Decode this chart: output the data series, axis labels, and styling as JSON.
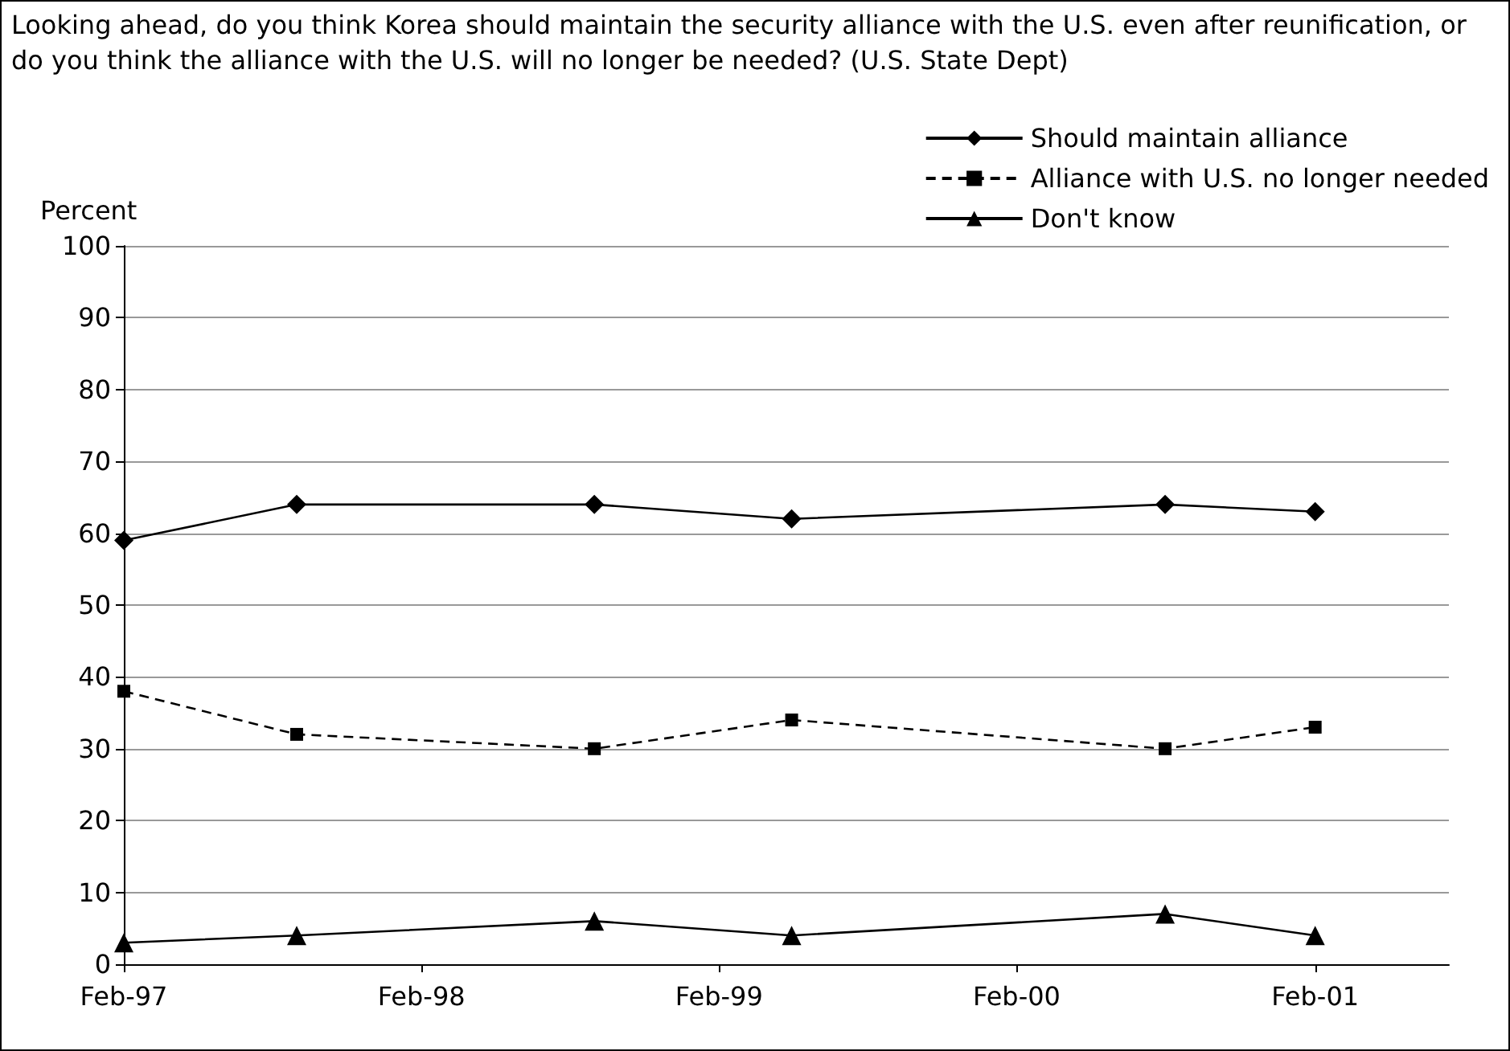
{
  "chart_data": {
    "type": "line",
    "title": "Looking ahead, do you think Korea should maintain the security alliance with the U.S. even after reunification, or do you think the alliance with the U.S. will no longer be needed? (U.S. State Dept)",
    "ylabel": "Percent",
    "x": [
      "1997-02",
      "1997-09",
      "1998-09",
      "1999-05",
      "2000-08",
      "2001-02"
    ],
    "series": [
      {
        "name": "Should maintain alliance",
        "color": "#000000",
        "marker": "diamond",
        "line_style": "solid",
        "values": [
          59,
          64,
          64,
          62,
          64,
          63
        ]
      },
      {
        "name": "Alliance with U.S. no longer needed",
        "color": "#000000",
        "marker": "square",
        "line_style": "dashed",
        "values": [
          38,
          32,
          30,
          34,
          30,
          33
        ]
      },
      {
        "name": "Don't know",
        "color": "#000000",
        "marker": "triangle",
        "line_style": "solid",
        "values": [
          3,
          4,
          6,
          4,
          7,
          4
        ]
      }
    ],
    "xlim": [
      "1997-02",
      "2001-07-15"
    ],
    "xticks": [
      {
        "value": "1997-02",
        "label": "Feb-97"
      },
      {
        "value": "1998-02",
        "label": "Feb-98"
      },
      {
        "value": "1999-02",
        "label": "Feb-99"
      },
      {
        "value": "2000-02",
        "label": "Feb-00"
      },
      {
        "value": "2001-02",
        "label": "Feb-01"
      }
    ],
    "ylim": [
      0,
      100
    ],
    "yticks": [
      0,
      10,
      20,
      30,
      40,
      50,
      60,
      70,
      80,
      90,
      100
    ],
    "grid": "y",
    "legend": "top right"
  }
}
